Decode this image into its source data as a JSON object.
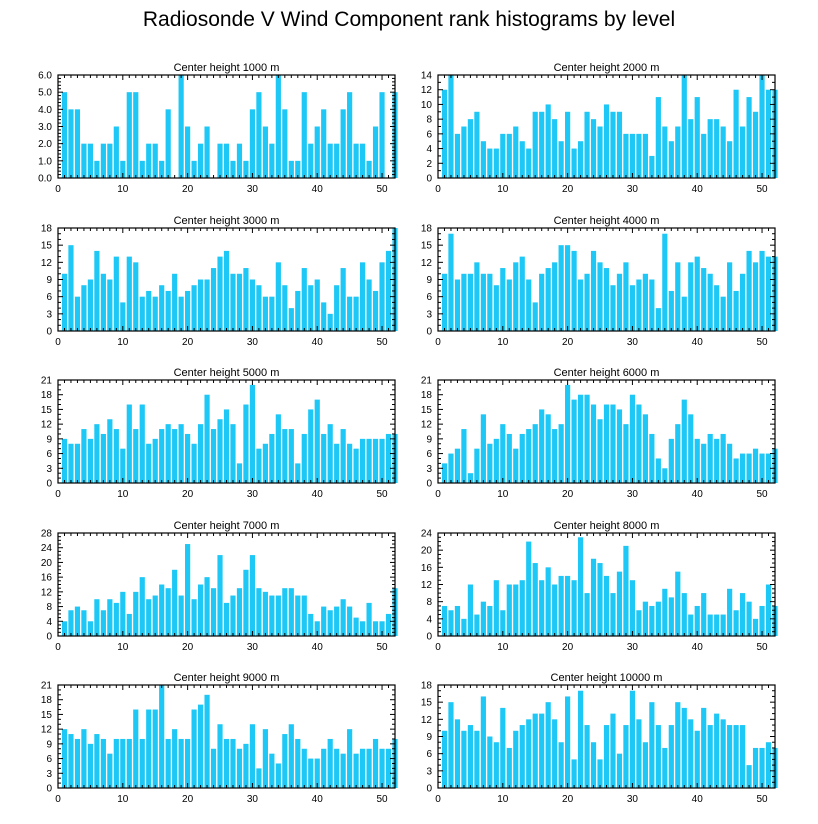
{
  "title": "Radiosonde V Wind Component rank histograms by level",
  "colors": {
    "bar": "#1ec8f6",
    "axis": "#000000"
  },
  "chart_data": [
    {
      "type": "bar",
      "title": "Center height 1000 m",
      "x_start": 1,
      "xlim": [
        0,
        52
      ],
      "xticks": [
        0,
        10,
        20,
        30,
        40,
        50
      ],
      "ylim": [
        0,
        6
      ],
      "yticks": [
        0.0,
        1.0,
        2.0,
        3.0,
        4.0,
        5.0,
        6.0
      ],
      "ytick_labels": [
        "0.0",
        "1.0",
        "2.0",
        "3.0",
        "4.0",
        "5.0",
        "6.0"
      ],
      "values": [
        5,
        4,
        4,
        2,
        2,
        1,
        2,
        2,
        3,
        1,
        5,
        5,
        1,
        2,
        2,
        1,
        4,
        0,
        6,
        3,
        1,
        2,
        3,
        0,
        2,
        2,
        1,
        2,
        1,
        4,
        5,
        3,
        2,
        6,
        4,
        1,
        1,
        5,
        2,
        3,
        4,
        2,
        2,
        4,
        5,
        2,
        2,
        1,
        3,
        5,
        0,
        5
      ]
    },
    {
      "type": "bar",
      "title": "Center height 2000 m",
      "x_start": 1,
      "xlim": [
        0,
        52
      ],
      "xticks": [
        0,
        10,
        20,
        30,
        40,
        50
      ],
      "ylim": [
        0,
        14
      ],
      "yticks": [
        0,
        2,
        4,
        6,
        8,
        10,
        12,
        14
      ],
      "ytick_labels": [
        "0",
        "2",
        "4",
        "6",
        "8",
        "10",
        "12",
        "14"
      ],
      "values": [
        12,
        14,
        6,
        7,
        8,
        9,
        5,
        4,
        4,
        6,
        6,
        7,
        5,
        4,
        9,
        9,
        10,
        8,
        5,
        9,
        4,
        5,
        9,
        8,
        7,
        10,
        9,
        9,
        6,
        6,
        6,
        6,
        3,
        11,
        7,
        5,
        7,
        14,
        8,
        11,
        6,
        8,
        8,
        7,
        5,
        12,
        7,
        11,
        9,
        14,
        12,
        12
      ]
    },
    {
      "type": "bar",
      "title": "Center height 3000 m",
      "x_start": 1,
      "xlim": [
        0,
        52
      ],
      "xticks": [
        0,
        10,
        20,
        30,
        40,
        50
      ],
      "ylim": [
        0,
        18
      ],
      "yticks": [
        0,
        3,
        6,
        9,
        12,
        15,
        18
      ],
      "ytick_labels": [
        "0",
        "3",
        "6",
        "9",
        "12",
        "15",
        "18"
      ],
      "values": [
        10,
        15,
        6,
        8,
        9,
        14,
        10,
        9,
        13,
        5,
        13,
        12,
        6,
        7,
        6,
        8,
        7,
        10,
        6,
        7,
        8,
        9,
        9,
        11,
        13,
        14,
        10,
        10,
        11,
        9,
        8,
        6,
        6,
        12,
        8,
        4,
        7,
        11,
        8,
        9,
        5,
        3,
        8,
        11,
        6,
        6,
        12,
        9,
        7,
        12,
        14,
        18
      ]
    },
    {
      "type": "bar",
      "title": "Center height 4000 m",
      "x_start": 1,
      "xlim": [
        0,
        52
      ],
      "xticks": [
        0,
        10,
        20,
        30,
        40,
        50
      ],
      "ylim": [
        0,
        18
      ],
      "yticks": [
        0,
        3,
        6,
        9,
        12,
        15,
        18
      ],
      "ytick_labels": [
        "0",
        "3",
        "6",
        "9",
        "12",
        "15",
        "18"
      ],
      "values": [
        10,
        17,
        9,
        10,
        10,
        12,
        10,
        10,
        8,
        11,
        9,
        12,
        13,
        9,
        5,
        10,
        11,
        12,
        15,
        15,
        14,
        9,
        10,
        14,
        12,
        11,
        8,
        10,
        12,
        8,
        9,
        10,
        9,
        4,
        17,
        7,
        12,
        6,
        12,
        13,
        11,
        10,
        8,
        6,
        12,
        7,
        10,
        14,
        12,
        14,
        13,
        13
      ]
    },
    {
      "type": "bar",
      "title": "Center height 5000 m",
      "x_start": 1,
      "xlim": [
        0,
        52
      ],
      "xticks": [
        0,
        10,
        20,
        30,
        40,
        50
      ],
      "ylim": [
        0,
        21
      ],
      "yticks": [
        0,
        3,
        6,
        9,
        12,
        15,
        18,
        21
      ],
      "ytick_labels": [
        "0",
        "3",
        "6",
        "9",
        "12",
        "15",
        "18",
        "21"
      ],
      "values": [
        9,
        8,
        8,
        11,
        9,
        12,
        10,
        13,
        11,
        7,
        16,
        11,
        16,
        8,
        9,
        11,
        12,
        11,
        12,
        10,
        8,
        12,
        18,
        11,
        13,
        15,
        12,
        4,
        16,
        20,
        7,
        8,
        10,
        14,
        11,
        11,
        4,
        10,
        15,
        17,
        10,
        12,
        8,
        11,
        8,
        7,
        9,
        9,
        9,
        9,
        10,
        10
      ]
    },
    {
      "type": "bar",
      "title": "Center height 6000 m",
      "x_start": 1,
      "xlim": [
        0,
        52
      ],
      "xticks": [
        0,
        10,
        20,
        30,
        40,
        50
      ],
      "ylim": [
        0,
        21
      ],
      "yticks": [
        0,
        3,
        6,
        9,
        12,
        15,
        18,
        21
      ],
      "ytick_labels": [
        "0",
        "3",
        "6",
        "9",
        "12",
        "15",
        "18",
        "21"
      ],
      "values": [
        4,
        6,
        7,
        11,
        2,
        7,
        14,
        8,
        9,
        12,
        10,
        7,
        10,
        11,
        12,
        15,
        14,
        11,
        12,
        20,
        17,
        18,
        18,
        16,
        13,
        16,
        16,
        15,
        12,
        18,
        16,
        14,
        10,
        5,
        3,
        9,
        12,
        17,
        14,
        9,
        8,
        10,
        9,
        10,
        8,
        5,
        6,
        6,
        7,
        6,
        6,
        7
      ]
    },
    {
      "type": "bar",
      "title": "Center height 7000 m",
      "x_start": 1,
      "xlim": [
        0,
        52
      ],
      "xticks": [
        0,
        10,
        20,
        30,
        40,
        50
      ],
      "ylim": [
        0,
        28
      ],
      "yticks": [
        0,
        4,
        8,
        12,
        16,
        20,
        24,
        28
      ],
      "ytick_labels": [
        "0",
        "4",
        "8",
        "12",
        "16",
        "20",
        "24",
        "28"
      ],
      "values": [
        4,
        7,
        8,
        7,
        4,
        10,
        7,
        10,
        9,
        12,
        6,
        12,
        16,
        10,
        11,
        14,
        13,
        18,
        11,
        25,
        10,
        14,
        16,
        13,
        22,
        9,
        11,
        13,
        18,
        22,
        13,
        12,
        11,
        11,
        13,
        13,
        11,
        11,
        6,
        4,
        8,
        7,
        8,
        10,
        8,
        5,
        4,
        9,
        4,
        4,
        6,
        13
      ]
    },
    {
      "type": "bar",
      "title": "Center height 8000 m",
      "x_start": 1,
      "xlim": [
        0,
        52
      ],
      "xticks": [
        0,
        10,
        20,
        30,
        40,
        50
      ],
      "ylim": [
        0,
        24
      ],
      "yticks": [
        0,
        4,
        8,
        12,
        16,
        20,
        24
      ],
      "ytick_labels": [
        "0",
        "4",
        "8",
        "12",
        "16",
        "20",
        "24"
      ],
      "values": [
        7,
        6,
        7,
        4,
        12,
        5,
        8,
        7,
        13,
        6,
        12,
        12,
        13,
        22,
        17,
        13,
        16,
        12,
        14,
        14,
        13,
        23,
        10,
        18,
        17,
        14,
        10,
        15,
        21,
        13,
        6,
        8,
        7,
        8,
        11,
        9,
        15,
        10,
        5,
        7,
        10,
        5,
        5,
        5,
        11,
        6,
        10,
        8,
        4,
        7,
        12,
        7
      ]
    },
    {
      "type": "bar",
      "title": "Center height 9000 m",
      "x_start": 1,
      "xlim": [
        0,
        52
      ],
      "xticks": [
        0,
        10,
        20,
        30,
        40,
        50
      ],
      "ylim": [
        0,
        21
      ],
      "yticks": [
        0,
        3,
        6,
        9,
        12,
        15,
        18,
        21
      ],
      "ytick_labels": [
        "0",
        "3",
        "6",
        "9",
        "12",
        "15",
        "18",
        "21"
      ],
      "values": [
        12,
        11,
        10,
        12,
        9,
        11,
        10,
        7,
        10,
        10,
        10,
        16,
        10,
        16,
        16,
        21,
        10,
        12,
        10,
        10,
        16,
        17,
        19,
        8,
        13,
        10,
        10,
        8,
        9,
        13,
        4,
        12,
        7,
        5,
        11,
        13,
        10,
        8,
        6,
        6,
        8,
        10,
        8,
        7,
        12,
        7,
        8,
        8,
        10,
        8,
        8,
        10
      ]
    },
    {
      "type": "bar",
      "title": "Center height 10000 m",
      "x_start": 1,
      "xlim": [
        0,
        52
      ],
      "xticks": [
        0,
        10,
        20,
        30,
        40,
        50
      ],
      "ylim": [
        0,
        18
      ],
      "yticks": [
        0,
        3,
        6,
        9,
        12,
        15,
        18
      ],
      "ytick_labels": [
        "0",
        "3",
        "6",
        "9",
        "12",
        "15",
        "18"
      ],
      "values": [
        10,
        15,
        12,
        10,
        11,
        10,
        16,
        9,
        8,
        14,
        7,
        10,
        11,
        12,
        13,
        13,
        15,
        12,
        8,
        16,
        5,
        17,
        11,
        8,
        5,
        11,
        13,
        6,
        11,
        17,
        12,
        8,
        15,
        11,
        7,
        11,
        15,
        14,
        12,
        10,
        14,
        11,
        13,
        12,
        11,
        11,
        11,
        4,
        7,
        7,
        8,
        7
      ]
    }
  ]
}
